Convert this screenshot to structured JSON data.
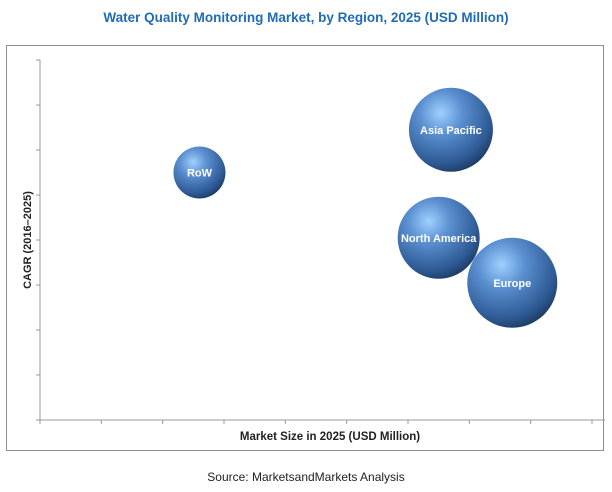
{
  "chart_data": {
    "type": "bubble",
    "title": "Water Quality Monitoring Market, by Region, 2025 (USD Million)",
    "xlabel": "Market Size in 2025 (USD Million)",
    "ylabel": "CAGR (2016–2025)",
    "xlim": [
      0,
      9
    ],
    "ylim": [
      0,
      8
    ],
    "x_ticks": 9,
    "y_ticks": 8,
    "tick_labels_shown": false,
    "grid": false,
    "bubble_color": "#4f7fc0",
    "points": [
      {
        "label": "RoW",
        "x": 2.6,
        "y": 5.5,
        "size": 26
      },
      {
        "label": "Asia Pacific",
        "x": 6.7,
        "y": 6.45,
        "size": 42
      },
      {
        "label": "North America",
        "x": 6.5,
        "y": 4.05,
        "size": 41
      },
      {
        "label": "Europe",
        "x": 7.7,
        "y": 3.05,
        "size": 45
      }
    ]
  },
  "source": "Source: MarketsandMarkets Analysis"
}
